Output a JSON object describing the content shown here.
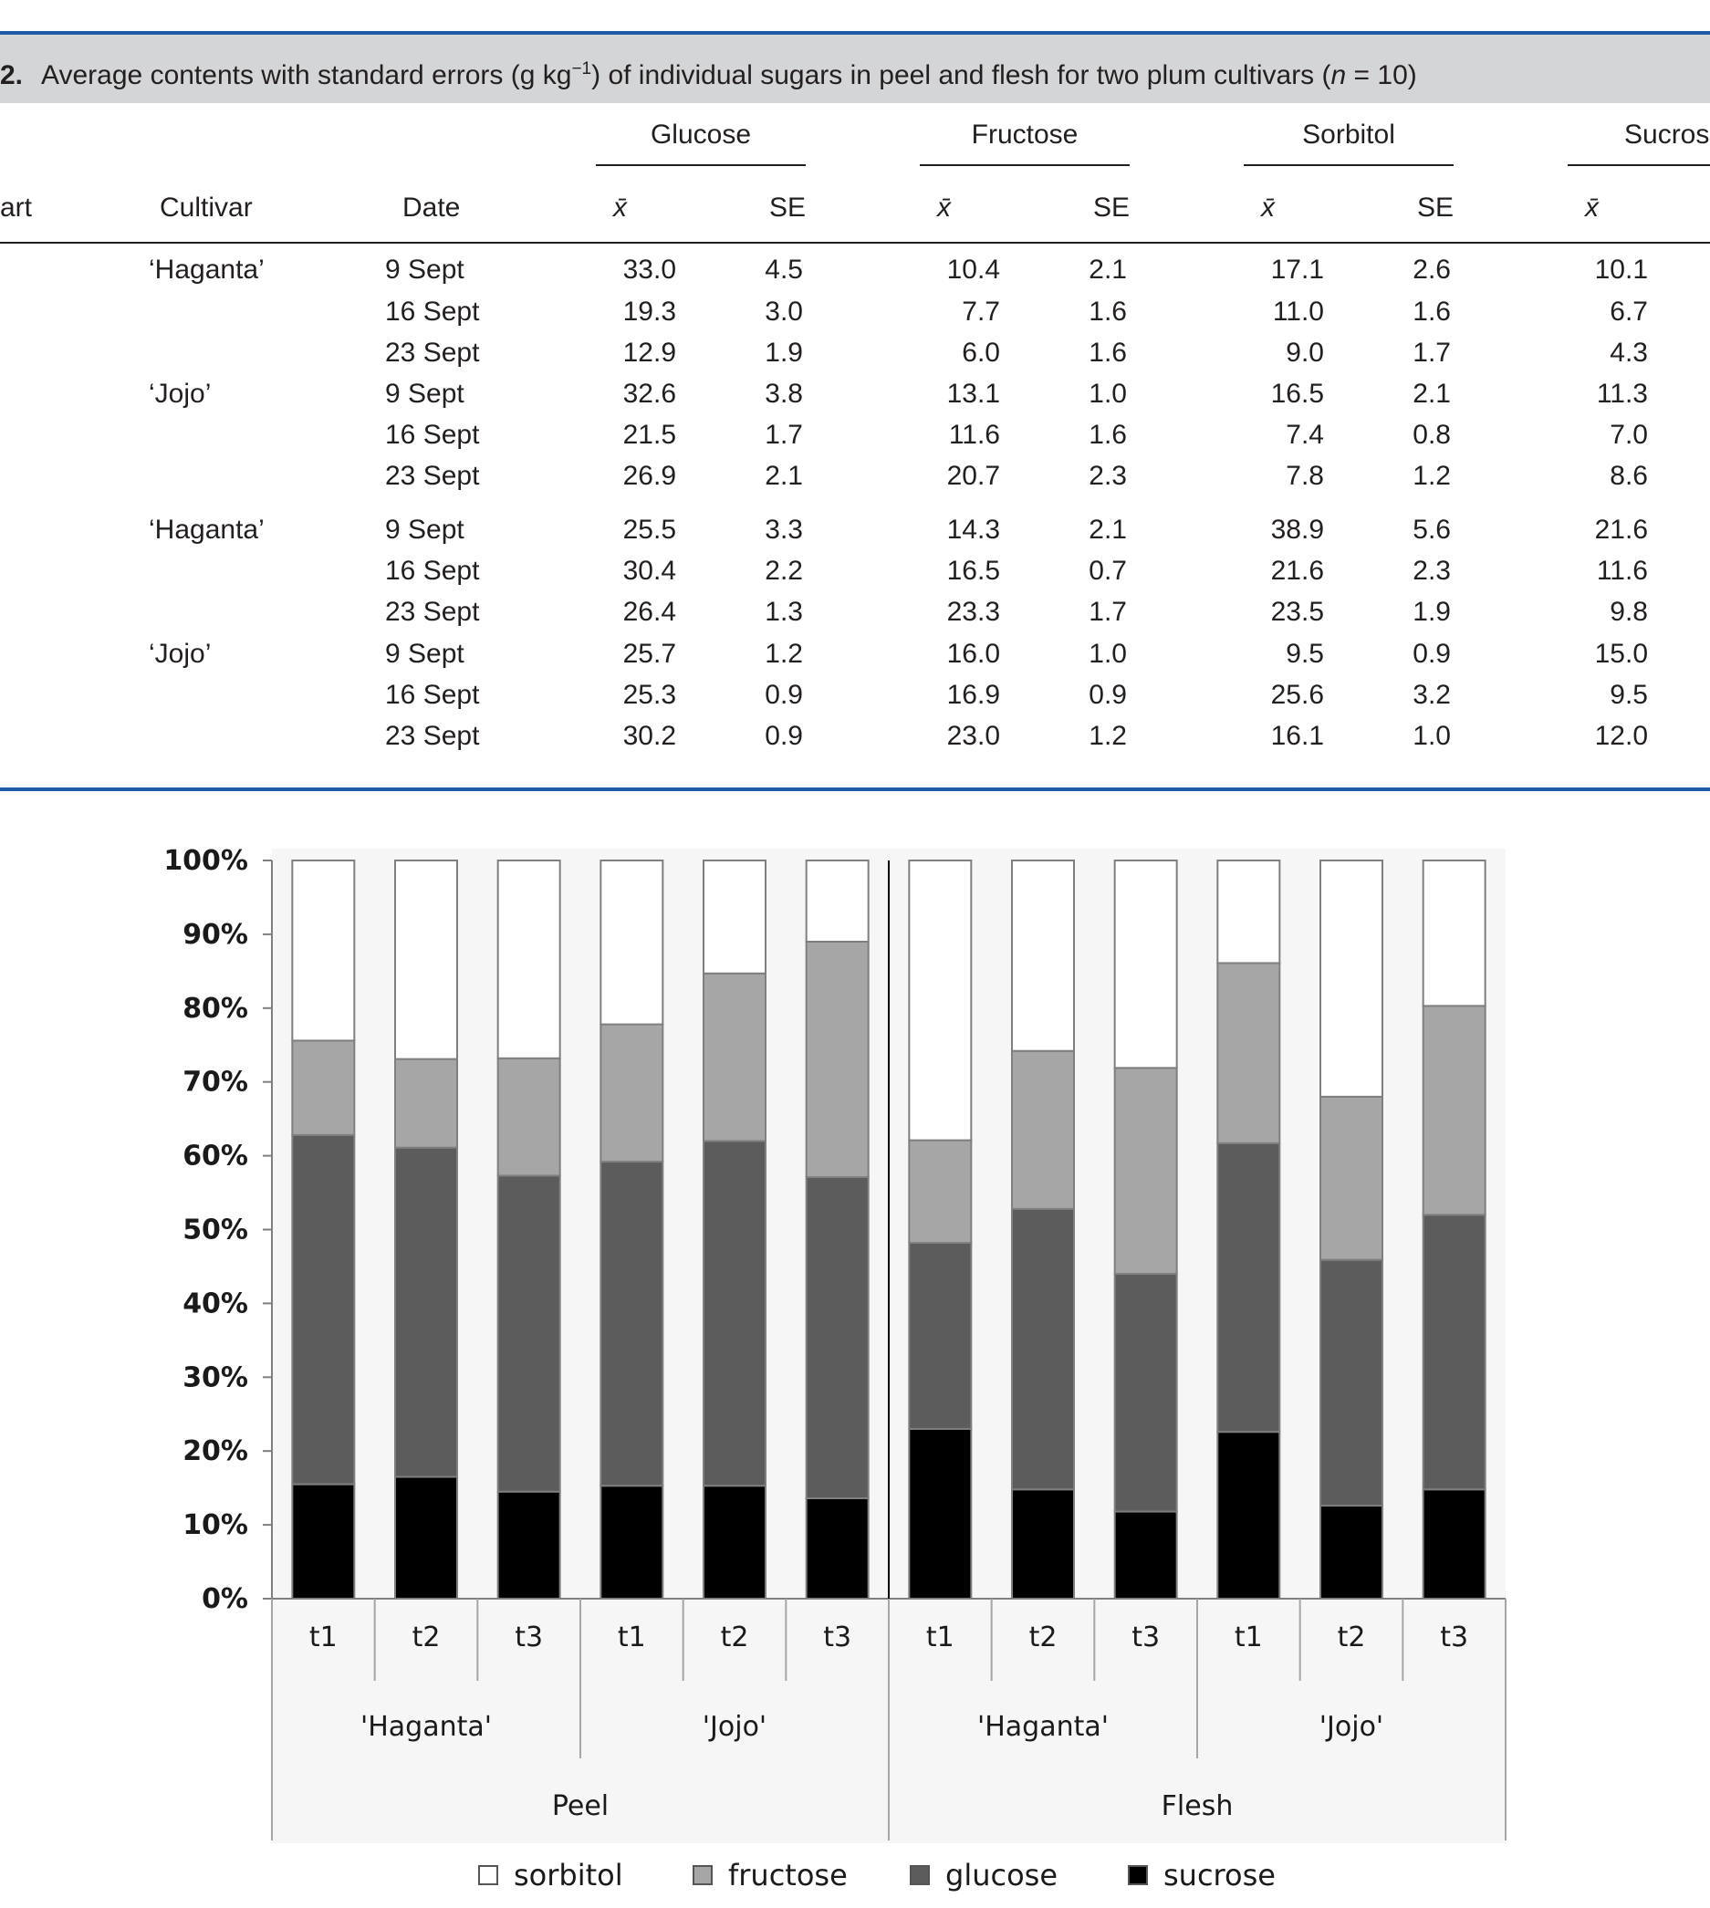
{
  "colors": {
    "rule": "#1f5aa6",
    "caption_bg": "#d4d5d6",
    "sorbitol": "#ffffff",
    "fructose": "#a6a6a6",
    "glucose": "#5c5c5c",
    "sucrose": "#000000"
  },
  "table": {
    "caption_number": "2.",
    "caption_text_1": "Average contents with standard errors (g kg",
    "caption_sup": "−1",
    "caption_text_2": ") of individual sugars in peel and flesh for two plum cultivars (",
    "caption_n": "n",
    "caption_text_3": " = 10)",
    "group_headers": [
      "Glucose",
      "Fructose",
      "Sorbitol",
      "Sucros"
    ],
    "col_part": "art",
    "col_cultivar": "Cultivar",
    "col_date": "Date",
    "col_mean": "x̄",
    "col_se": "SE",
    "rows": [
      {
        "cultivar": "‘Haganta’",
        "date": "9 Sept",
        "glu": "33.0",
        "glu_se": "4.5",
        "fru": "10.4",
        "fru_se": "2.1",
        "sor": "17.1",
        "sor_se": "2.6",
        "suc": "10.1"
      },
      {
        "cultivar": "",
        "date": "16 Sept",
        "glu": "19.3",
        "glu_se": "3.0",
        "fru": "7.7",
        "fru_se": "1.6",
        "sor": "11.0",
        "sor_se": "1.6",
        "suc": "6.7"
      },
      {
        "cultivar": "",
        "date": "23 Sept",
        "glu": "12.9",
        "glu_se": "1.9",
        "fru": "6.0",
        "fru_se": "1.6",
        "sor": "9.0",
        "sor_se": "1.7",
        "suc": "4.3"
      },
      {
        "cultivar": "‘Jojo’",
        "date": "9 Sept",
        "glu": "32.6",
        "glu_se": "3.8",
        "fru": "13.1",
        "fru_se": "1.0",
        "sor": "16.5",
        "sor_se": "2.1",
        "suc": "11.3"
      },
      {
        "cultivar": "",
        "date": "16 Sept",
        "glu": "21.5",
        "glu_se": "1.7",
        "fru": "11.6",
        "fru_se": "1.6",
        "sor": "7.4",
        "sor_se": "0.8",
        "suc": "7.0"
      },
      {
        "cultivar": "",
        "date": "23 Sept",
        "glu": "26.9",
        "glu_se": "2.1",
        "fru": "20.7",
        "fru_se": "2.3",
        "sor": "7.8",
        "sor_se": "1.2",
        "suc": "8.6"
      },
      {
        "cultivar": "‘Haganta’",
        "date": "9 Sept",
        "glu": "25.5",
        "glu_se": "3.3",
        "fru": "14.3",
        "fru_se": "2.1",
        "sor": "38.9",
        "sor_se": "5.6",
        "suc": "21.6"
      },
      {
        "cultivar": "",
        "date": "16 Sept",
        "glu": "30.4",
        "glu_se": "2.2",
        "fru": "16.5",
        "fru_se": "0.7",
        "sor": "21.6",
        "sor_se": "2.3",
        "suc": "11.6"
      },
      {
        "cultivar": "",
        "date": "23 Sept",
        "glu": "26.4",
        "glu_se": "1.3",
        "fru": "23.3",
        "fru_se": "1.7",
        "sor": "23.5",
        "sor_se": "1.9",
        "suc": "9.8"
      },
      {
        "cultivar": "‘Jojo’",
        "date": "9 Sept",
        "glu": "25.7",
        "glu_se": "1.2",
        "fru": "16.0",
        "fru_se": "1.0",
        "sor": "9.5",
        "sor_se": "0.9",
        "suc": "15.0"
      },
      {
        "cultivar": "",
        "date": "16 Sept",
        "glu": "25.3",
        "glu_se": "0.9",
        "fru": "16.9",
        "fru_se": "0.9",
        "sor": "25.6",
        "sor_se": "3.2",
        "suc": "9.5"
      },
      {
        "cultivar": "",
        "date": "23 Sept",
        "glu": "30.2",
        "glu_se": "0.9",
        "fru": "23.0",
        "fru_se": "1.2",
        "sor": "16.1",
        "sor_se": "1.0",
        "suc": "12.0"
      }
    ]
  },
  "chart_data": {
    "type": "bar",
    "stacked": true,
    "percent": true,
    "ylim": [
      0,
      100
    ],
    "y_ticks": [
      "0%",
      "10%",
      "20%",
      "30%",
      "40%",
      "50%",
      "60%",
      "70%",
      "80%",
      "90%",
      "100%"
    ],
    "categories": [
      "t1",
      "t2",
      "t3",
      "t1",
      "t2",
      "t3",
      "t1",
      "t2",
      "t3",
      "t1",
      "t2",
      "t3"
    ],
    "cultivar_labels": [
      "'Haganta'",
      "'Jojo'",
      "'Haganta'",
      "'Jojo'"
    ],
    "part_labels": [
      "Peel",
      "Flesh"
    ],
    "legend_position": "bottom",
    "series": [
      {
        "name": "sucrose",
        "values": [
          15.5,
          16.5,
          14.5,
          15.3,
          15.3,
          13.6,
          23.0,
          14.8,
          11.8,
          22.6,
          12.6,
          14.8
        ]
      },
      {
        "name": "glucose",
        "values": [
          47.3,
          44.6,
          42.8,
          43.9,
          46.7,
          43.5,
          25.2,
          38.0,
          32.2,
          39.1,
          33.3,
          37.2
        ]
      },
      {
        "name": "fructose",
        "values": [
          12.8,
          12.0,
          15.9,
          18.6,
          22.7,
          31.9,
          13.9,
          21.4,
          27.9,
          24.4,
          22.1,
          28.3
        ]
      },
      {
        "name": "sorbitol",
        "values": [
          24.4,
          26.9,
          26.8,
          22.2,
          15.3,
          11.0,
          37.9,
          25.8,
          28.1,
          13.9,
          32.0,
          19.7
        ]
      }
    ],
    "legend_order": [
      "sorbitol",
      "fructose",
      "glucose",
      "sucrose"
    ]
  }
}
